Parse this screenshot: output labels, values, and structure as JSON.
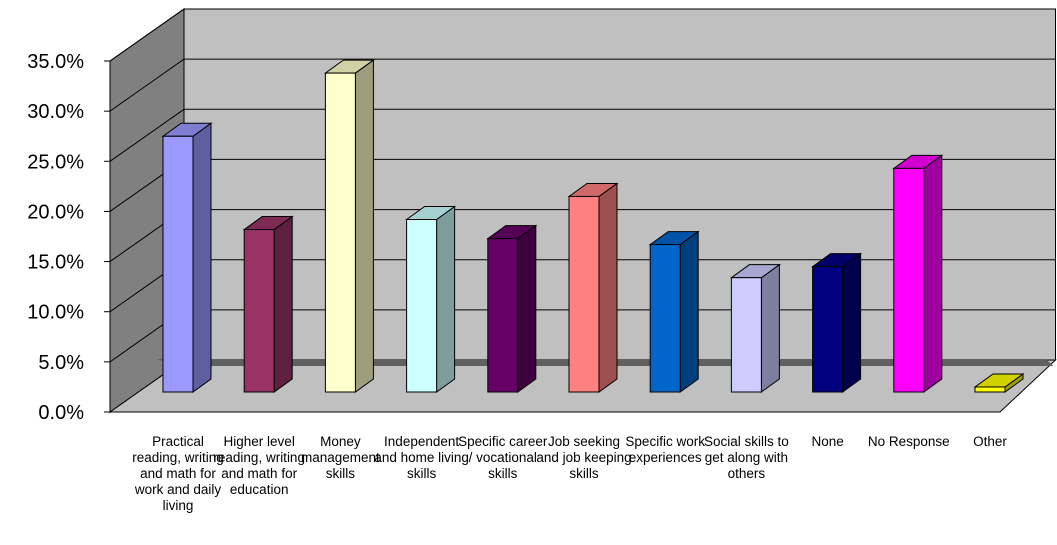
{
  "chart_data": {
    "type": "bar",
    "title": "",
    "xlabel": "",
    "ylabel": "",
    "ylim": [
      0,
      35
    ],
    "y_ticks": [
      "0.0%",
      "5.0%",
      "10.0%",
      "15.0%",
      "20.0%",
      "25.0%",
      "30.0%",
      "35.0%"
    ],
    "grid": true,
    "categories": [
      "Practical reading, writing and math for work and daily living",
      "Higher level reading, writing and math for education",
      "Money management skills",
      "Independent and home living skills",
      "Specific career / vocational skills",
      "Job seeking and job keeping skills",
      "Specific work experiences",
      "Social skills to get along with others",
      "None",
      "No Response",
      "Other"
    ],
    "series": [
      {
        "values": [
          25.5,
          16.2,
          31.8,
          17.2,
          15.3,
          19.5,
          14.7,
          11.4,
          12.5,
          22.3,
          0.5
        ],
        "colors": [
          "#9999ff",
          "#993366",
          "#ffffcc",
          "#ccffff",
          "#660066",
          "#ff8080",
          "#0066cc",
          "#ccccff",
          "#000080",
          "#ff00ff",
          "#ffff00"
        ]
      }
    ]
  }
}
